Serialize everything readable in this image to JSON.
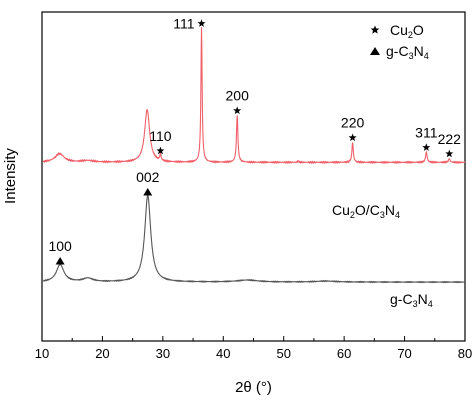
{
  "chart_data": {
    "type": "line",
    "xlabel": "2θ (°)",
    "ylabel": "Intensity",
    "xlim": [
      10,
      80
    ],
    "xticks": [
      10,
      20,
      30,
      40,
      50,
      60,
      70,
      80
    ],
    "ylim": [
      0,
      100
    ],
    "legend": {
      "placement": "top-right",
      "entries": [
        {
          "marker": "star",
          "label_main": "Cu",
          "label_sub1": "2",
          "label_tail": "O"
        },
        {
          "marker": "triangle",
          "label_main": "g-C",
          "label_sub1": "3",
          "label_mid": "N",
          "label_sub2": "4"
        }
      ]
    },
    "series": [
      {
        "color": "#f0606a",
        "label_parts": {
          "a": "Cu",
          "s1": "2",
          "b": "O/C",
          "s2": "3",
          "c": "N",
          "s3": "4"
        },
        "baseline": 54.3,
        "noise": 0.18,
        "peaks": [
          {
            "x": 12.9,
            "h": 2.6,
            "w": 0.9
          },
          {
            "x": 17.6,
            "h": 0.5,
            "w": 1.2
          },
          {
            "x": 27.4,
            "h": 16.0,
            "w": 0.5
          },
          {
            "x": 29.6,
            "h": 2.0,
            "w": 0.12
          },
          {
            "x": 36.4,
            "h": 41.0,
            "w": 0.12
          },
          {
            "x": 42.3,
            "h": 14.4,
            "w": 0.14
          },
          {
            "x": 52.4,
            "h": 0.4,
            "w": 0.12
          },
          {
            "x": 61.4,
            "h": 6.0,
            "w": 0.14
          },
          {
            "x": 73.6,
            "h": 3.1,
            "w": 0.15
          },
          {
            "x": 77.4,
            "h": 1.1,
            "w": 0.15
          }
        ]
      },
      {
        "color": "#555555",
        "label_parts": {
          "a": "g-C",
          "s1": "3",
          "b": "N",
          "s2": "4"
        },
        "baseline": 17.9,
        "noise": 0.12,
        "peaks": [
          {
            "x": 13.0,
            "h": 5.3,
            "w": 0.75
          },
          {
            "x": 17.6,
            "h": 1.1,
            "w": 1.0
          },
          {
            "x": 27.5,
            "h": 26.3,
            "w": 0.6
          },
          {
            "x": 44.0,
            "h": 0.6,
            "w": 2.0
          },
          {
            "x": 57.0,
            "h": 0.3,
            "w": 2.0
          }
        ]
      }
    ],
    "annotations": [
      {
        "text": "111",
        "marker": "star",
        "x": 36.4,
        "y": 96.5
      },
      {
        "text": "110",
        "marker": "star",
        "x": 29.6,
        "y": 57.8
      },
      {
        "text": "200",
        "marker": "star",
        "x": 42.3,
        "y": 70.0
      },
      {
        "text": "220",
        "marker": "star",
        "x": 61.4,
        "y": 61.8
      },
      {
        "text": "311",
        "marker": "star",
        "x": 73.6,
        "y": 58.8
      },
      {
        "text": "222",
        "marker": "star",
        "x": 77.4,
        "y": 56.9
      },
      {
        "text": "002",
        "marker": "triangle",
        "x": 27.5,
        "y": 45.3
      },
      {
        "text": "100",
        "marker": "triangle",
        "x": 13.0,
        "y": 24.3
      }
    ]
  }
}
